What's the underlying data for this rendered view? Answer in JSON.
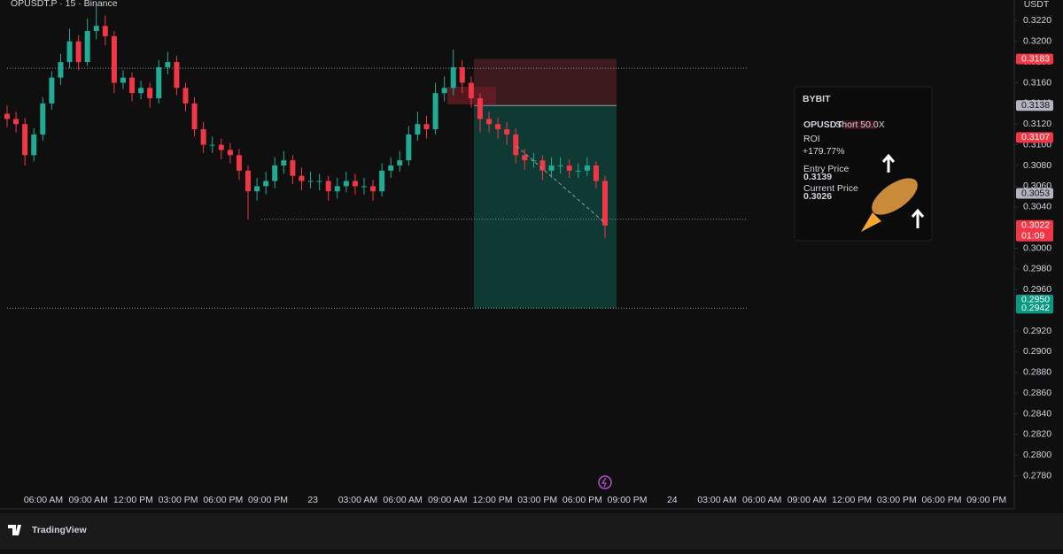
{
  "chart_data": {
    "type": "candlestick",
    "title": "OPUSDT.P · 15 · Binance",
    "currency": "USDT",
    "up_color": "#22ab94",
    "down_color": "#f23645",
    "open": [
      0.313,
      0.3125,
      0.312,
      0.309,
      0.311,
      0.314,
      0.3165,
      0.318,
      0.32,
      0.318,
      0.321,
      0.3215,
      0.3205,
      0.316,
      0.3165,
      0.315,
      0.3155,
      0.3145,
      0.3175,
      0.318,
      0.3155,
      0.314,
      0.3115,
      0.31,
      0.31,
      0.3095,
      0.309,
      0.3075,
      0.3055,
      0.306,
      0.3065,
      0.308,
      0.3085,
      0.307,
      0.3065,
      0.3065,
      0.3065,
      0.3055,
      0.306,
      0.3065,
      0.306,
      0.306,
      0.3055,
      0.3075,
      0.308,
      0.3085,
      0.311,
      0.312,
      0.3115,
      0.315,
      0.3155,
      0.3175,
      0.316,
      0.3145,
      0.3125,
      0.312,
      0.3115,
      0.311,
      0.309,
      0.3085,
      0.3085,
      0.3075,
      0.308,
      0.308,
      0.3075,
      0.3075,
      0.308,
      0.3065
    ],
    "high": [
      0.3138,
      0.3132,
      0.3126,
      0.3116,
      0.3146,
      0.3171,
      0.3188,
      0.3212,
      0.3206,
      0.3222,
      0.3237,
      0.3225,
      0.321,
      0.3172,
      0.317,
      0.3162,
      0.316,
      0.3182,
      0.319,
      0.3186,
      0.316,
      0.3146,
      0.3122,
      0.3108,
      0.3106,
      0.3102,
      0.3096,
      0.308,
      0.3068,
      0.3074,
      0.3088,
      0.3094,
      0.309,
      0.3078,
      0.3074,
      0.3072,
      0.307,
      0.3068,
      0.3074,
      0.3072,
      0.3068,
      0.3066,
      0.3082,
      0.3088,
      0.3094,
      0.3118,
      0.3132,
      0.3128,
      0.316,
      0.3166,
      0.3192,
      0.3182,
      0.3166,
      0.315,
      0.3132,
      0.3126,
      0.3122,
      0.3116,
      0.3096,
      0.3092,
      0.309,
      0.3088,
      0.3088,
      0.3086,
      0.3082,
      0.3088,
      0.3084,
      0.307
    ],
    "low": [
      0.3117,
      0.3112,
      0.308,
      0.3084,
      0.3104,
      0.3134,
      0.3158,
      0.3174,
      0.3172,
      0.3176,
      0.3202,
      0.3196,
      0.315,
      0.3154,
      0.3142,
      0.3144,
      0.3136,
      0.314,
      0.3168,
      0.3148,
      0.3132,
      0.3108,
      0.3092,
      0.3092,
      0.3086,
      0.3082,
      0.3066,
      0.3028,
      0.3046,
      0.3052,
      0.3058,
      0.3072,
      0.3062,
      0.3056,
      0.3058,
      0.3056,
      0.3046,
      0.3048,
      0.3054,
      0.3052,
      0.3052,
      0.3046,
      0.305,
      0.3068,
      0.3074,
      0.308,
      0.3104,
      0.3106,
      0.311,
      0.3142,
      0.3148,
      0.315,
      0.3136,
      0.3112,
      0.3112,
      0.3106,
      0.31,
      0.3082,
      0.3076,
      0.3078,
      0.3066,
      0.3068,
      0.3072,
      0.3068,
      0.3068,
      0.307,
      0.3058,
      0.301
    ],
    "close": [
      0.3125,
      0.312,
      0.309,
      0.311,
      0.314,
      0.3165,
      0.318,
      0.32,
      0.318,
      0.321,
      0.3215,
      0.3205,
      0.316,
      0.3165,
      0.315,
      0.3155,
      0.3145,
      0.3175,
      0.318,
      0.3155,
      0.314,
      0.3115,
      0.31,
      0.31,
      0.3095,
      0.309,
      0.3075,
      0.3055,
      0.306,
      0.3065,
      0.308,
      0.3085,
      0.307,
      0.3065,
      0.3065,
      0.3065,
      0.3055,
      0.306,
      0.3065,
      0.306,
      0.306,
      0.3055,
      0.3075,
      0.308,
      0.3085,
      0.311,
      0.312,
      0.3115,
      0.315,
      0.3155,
      0.3175,
      0.316,
      0.3145,
      0.3125,
      0.312,
      0.3115,
      0.311,
      0.309,
      0.3085,
      0.3085,
      0.3075,
      0.308,
      0.308,
      0.3075,
      0.3075,
      0.308,
      0.3065,
      0.3022
    ],
    "ylim": [
      0.2748,
      0.324
    ],
    "yticks": [
      {
        "value": 0.322,
        "label": "0.3220"
      },
      {
        "value": 0.32,
        "label": "0.3200"
      },
      {
        "value": 0.318,
        "label": "0.3180"
      },
      {
        "value": 0.316,
        "label": "0.3160"
      },
      {
        "value": 0.314,
        "label": "0.3140"
      },
      {
        "value": 0.312,
        "label": "0.3120"
      },
      {
        "value": 0.31,
        "label": "0.3100"
      },
      {
        "value": 0.308,
        "label": "0.3080"
      },
      {
        "value": 0.306,
        "label": "0.3060"
      },
      {
        "value": 0.304,
        "label": "0.3040"
      },
      {
        "value": 0.302,
        "label": "0.3020"
      },
      {
        "value": 0.3,
        "label": "0.3000"
      },
      {
        "value": 0.298,
        "label": "0.2980"
      },
      {
        "value": 0.296,
        "label": "0.2960"
      },
      {
        "value": 0.294,
        "label": "0.2940"
      },
      {
        "value": 0.292,
        "label": "0.2920"
      },
      {
        "value": 0.29,
        "label": "0.2900"
      },
      {
        "value": 0.288,
        "label": "0.2880"
      },
      {
        "value": 0.286,
        "label": "0.2860"
      },
      {
        "value": 0.284,
        "label": "0.2840"
      },
      {
        "value": 0.282,
        "label": "0.2820"
      },
      {
        "value": 0.28,
        "label": "0.2800"
      },
      {
        "value": 0.278,
        "label": "0.2780"
      }
    ],
    "time_labels": [
      "06:00 AM",
      "09:00 AM",
      "12:00 PM",
      "03:00 PM",
      "06:00 PM",
      "09:00 PM",
      "23",
      "03:00 AM",
      "06:00 AM",
      "09:00 AM",
      "12:00 PM",
      "03:00 PM",
      "06:00 PM",
      "09:00 PM",
      "24",
      "03:00 AM",
      "06:00 AM",
      "09:00 AM",
      "12:00 PM",
      "03:00 PM",
      "06:00 PM",
      "09:00 PM"
    ],
    "price_lines": [
      0.3174,
      0.3028,
      0.2942
    ],
    "position": {
      "stop": 0.3183,
      "entry": 0.3138,
      "target": 0.2942
    },
    "price_badges": [
      {
        "value": 0.3183,
        "color": "#f23645"
      },
      {
        "value": 0.3138,
        "color": "#b2b5be"
      },
      {
        "value": 0.3107,
        "color": "#f23645"
      },
      {
        "value": 0.3053,
        "color": "#b2b5be"
      },
      {
        "value": 0.3022,
        "color": "#f23645",
        "countdown": "01:09"
      },
      {
        "value": {
          "value": 0.295,
          "label": "0.2950"
        },
        "color": "#089981"
      },
      {
        "value": 0.2942,
        "color": "#089981"
      }
    ]
  },
  "share_card": {
    "brand": "BYBIT",
    "symbol": "OPUSDT",
    "side": "Short 50.0X",
    "roi_label": "ROI",
    "roi": "+179.77%",
    "entry_label": "Entry Price",
    "entry": "0.3139",
    "current_label": "Current Price",
    "current": "0.3026"
  },
  "footer": {
    "brand": "TradingView"
  }
}
